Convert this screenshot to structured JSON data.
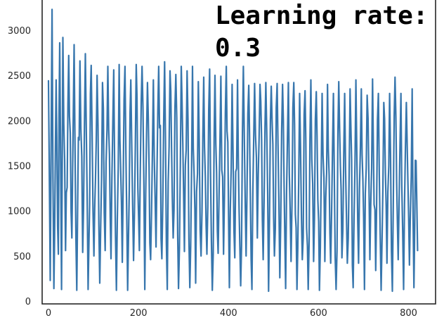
{
  "chart_data": {
    "type": "line",
    "title": "",
    "xlabel": "",
    "ylabel": "",
    "xlim": [
      -14,
      860
    ],
    "ylim": [
      -30,
      3350
    ],
    "xticks": [
      0,
      200,
      400,
      600,
      800
    ],
    "yticks": [
      0,
      500,
      1000,
      1500,
      2000,
      2500,
      3000
    ],
    "grid": false,
    "color": "#3776ad",
    "annotation": {
      "line1": "Learning rate:",
      "line2": "0.3"
    },
    "series": [
      {
        "x_start": 0,
        "x_end": 820,
        "pattern": "oscillating loss values; peaks decay from ~3230 near x=8 to ~2200-2450 near x=800, troughs ~120 to 800",
        "peaks": [
          [
            0,
            2440
          ],
          [
            8,
            3230
          ],
          [
            17,
            2450
          ],
          [
            25,
            2860
          ],
          [
            32,
            2920
          ],
          [
            45,
            2720
          ],
          [
            57,
            2840
          ],
          [
            70,
            2660
          ],
          [
            82,
            2740
          ],
          [
            95,
            2610
          ],
          [
            108,
            2500
          ],
          [
            120,
            2420
          ],
          [
            132,
            2600
          ],
          [
            145,
            2560
          ],
          [
            157,
            2620
          ],
          [
            170,
            2600
          ],
          [
            183,
            2450
          ],
          [
            195,
            2620
          ],
          [
            208,
            2600
          ],
          [
            220,
            2420
          ],
          [
            233,
            2450
          ],
          [
            245,
            2600
          ],
          [
            258,
            2650
          ],
          [
            270,
            2550
          ],
          [
            283,
            2510
          ],
          [
            295,
            2600
          ],
          [
            308,
            2550
          ],
          [
            320,
            2600
          ],
          [
            333,
            2430
          ],
          [
            345,
            2480
          ],
          [
            358,
            2570
          ],
          [
            370,
            2500
          ],
          [
            383,
            2490
          ],
          [
            395,
            2600
          ],
          [
            408,
            2400
          ],
          [
            420,
            2450
          ],
          [
            433,
            2600
          ],
          [
            445,
            2390
          ],
          [
            458,
            2410
          ],
          [
            470,
            2400
          ],
          [
            483,
            2420
          ],
          [
            495,
            2380
          ],
          [
            508,
            2410
          ],
          [
            520,
            2400
          ],
          [
            533,
            2420
          ],
          [
            545,
            2420
          ],
          [
            558,
            2300
          ],
          [
            570,
            2330
          ],
          [
            583,
            2450
          ],
          [
            595,
            2320
          ],
          [
            608,
            2300
          ],
          [
            620,
            2400
          ],
          [
            633,
            2300
          ],
          [
            645,
            2430
          ],
          [
            658,
            2300
          ],
          [
            670,
            2350
          ],
          [
            683,
            2450
          ],
          [
            695,
            2350
          ],
          [
            708,
            2280
          ],
          [
            720,
            2460
          ],
          [
            733,
            2300
          ],
          [
            745,
            2200
          ],
          [
            758,
            2300
          ],
          [
            770,
            2480
          ],
          [
            783,
            2300
          ],
          [
            795,
            2200
          ],
          [
            808,
            2350
          ],
          [
            815,
            1560
          ]
        ],
        "troughs": [
          [
            4,
            230
          ],
          [
            12,
            140
          ],
          [
            22,
            520
          ],
          [
            29,
            130
          ],
          [
            38,
            560
          ],
          [
            52,
            700
          ],
          [
            63,
            120
          ],
          [
            76,
            540
          ],
          [
            88,
            130
          ],
          [
            101,
            500
          ],
          [
            114,
            200
          ],
          [
            126,
            560
          ],
          [
            139,
            470
          ],
          [
            151,
            120
          ],
          [
            164,
            430
          ],
          [
            176,
            120
          ],
          [
            189,
            450
          ],
          [
            202,
            560
          ],
          [
            214,
            130
          ],
          [
            227,
            460
          ],
          [
            239,
            600
          ],
          [
            252,
            470
          ],
          [
            264,
            130
          ],
          [
            277,
            700
          ],
          [
            289,
            140
          ],
          [
            302,
            550
          ],
          [
            314,
            150
          ],
          [
            327,
            200
          ],
          [
            339,
            500
          ],
          [
            352,
            520
          ],
          [
            364,
            120
          ],
          [
            377,
            530
          ],
          [
            389,
            520
          ],
          [
            402,
            150
          ],
          [
            414,
            480
          ],
          [
            427,
            170
          ],
          [
            439,
            500
          ],
          [
            452,
            130
          ],
          [
            464,
            700
          ],
          [
            477,
            460
          ],
          [
            489,
            110
          ],
          [
            502,
            500
          ],
          [
            514,
            260
          ],
          [
            527,
            140
          ],
          [
            539,
            440
          ],
          [
            552,
            130
          ],
          [
            564,
            460
          ],
          [
            577,
            130
          ],
          [
            589,
            440
          ],
          [
            602,
            120
          ],
          [
            614,
            440
          ],
          [
            627,
            420
          ],
          [
            639,
            130
          ],
          [
            652,
            480
          ],
          [
            664,
            420
          ],
          [
            677,
            150
          ],
          [
            689,
            420
          ],
          [
            702,
            130
          ],
          [
            714,
            460
          ],
          [
            727,
            340
          ],
          [
            739,
            120
          ],
          [
            752,
            420
          ],
          [
            764,
            110
          ],
          [
            777,
            460
          ],
          [
            789,
            130
          ],
          [
            802,
            400
          ],
          [
            812,
            150
          ],
          [
            820,
            560
          ]
        ]
      }
    ]
  }
}
